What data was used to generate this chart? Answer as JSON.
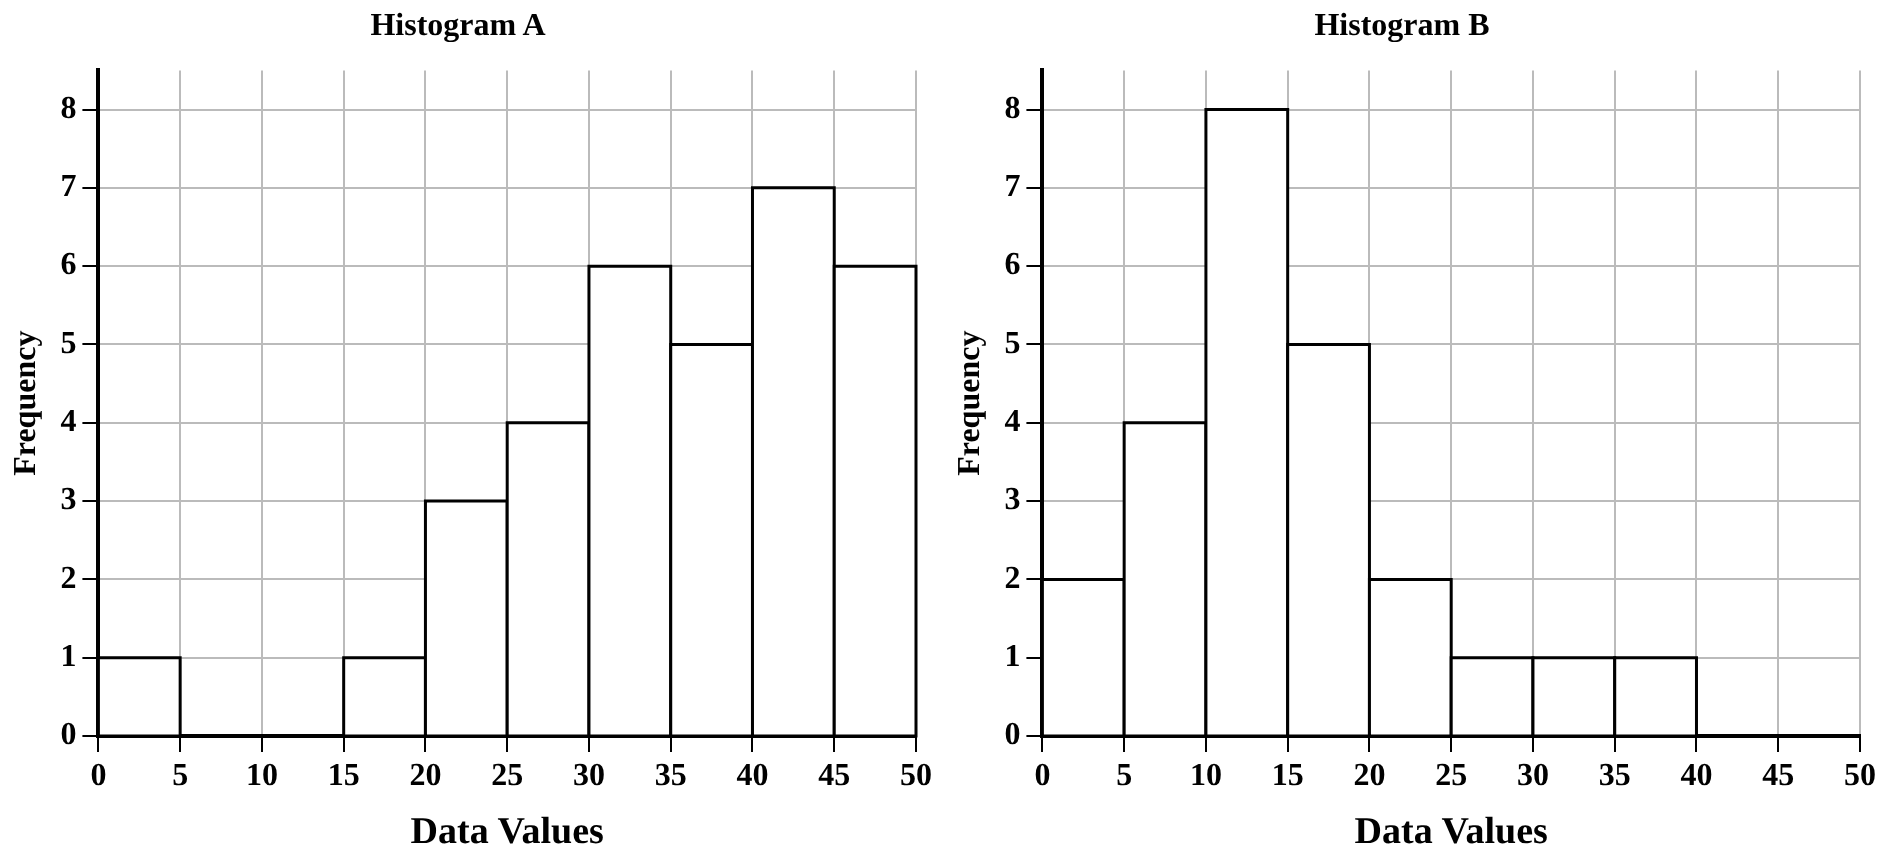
{
  "chart_data": [
    {
      "type": "histogram",
      "title": "Histogram A",
      "xlabel": "Data Values",
      "ylabel": "Frequency",
      "bins": [
        0,
        5,
        10,
        15,
        20,
        25,
        30,
        35,
        40,
        45,
        50
      ],
      "values": [
        1,
        0,
        0,
        1,
        3,
        4,
        6,
        5,
        7,
        6
      ],
      "color": "#000000",
      "xlim": [
        0,
        50
      ],
      "xticks": [
        0,
        5,
        10,
        15,
        20,
        25,
        30,
        35,
        40,
        45,
        50
      ],
      "ylim": [
        0,
        8.5
      ],
      "yticks": [
        0,
        1,
        2,
        3,
        4,
        5,
        6,
        7,
        8
      ],
      "grid": true
    },
    {
      "type": "histogram",
      "title": "Histogram B",
      "xlabel": "Data Values",
      "ylabel": "Frequency",
      "bins": [
        0,
        5,
        10,
        15,
        20,
        25,
        30,
        35,
        40,
        45,
        50
      ],
      "values": [
        2,
        4,
        8,
        5,
        2,
        1,
        1,
        1,
        0,
        0
      ],
      "color": "#000000",
      "xlim": [
        0,
        50
      ],
      "xticks": [
        0,
        5,
        10,
        15,
        20,
        25,
        30,
        35,
        40,
        45,
        50
      ],
      "ylim": [
        0,
        8.5
      ],
      "yticks": [
        0,
        1,
        2,
        3,
        4,
        5,
        6,
        7,
        8
      ],
      "grid": true
    }
  ]
}
